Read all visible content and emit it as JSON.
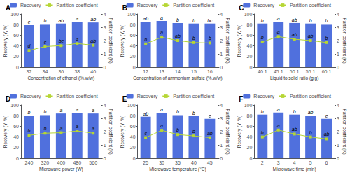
{
  "chart_data": [
    {
      "type": "bar",
      "title": "A",
      "x_label": "Concentration of ethanol (%,w/w)",
      "y_label": "Recovery (Y, %)",
      "y2_label": "Partition coefficient (K)",
      "categories": [
        "32",
        "34",
        "36",
        "38",
        "40"
      ],
      "series": [
        {
          "name": "Recovery",
          "type": "bar",
          "values": [
            79,
            81,
            82,
            85,
            84
          ],
          "annotations": [
            "c",
            "b",
            "ab",
            "a",
            "ab"
          ]
        },
        {
          "name": "Partition coefficient",
          "type": "line",
          "axis": "y2",
          "marker": "square",
          "values": [
            1.25,
            1.55,
            1.62,
            1.78,
            1.65
          ],
          "annotations": [
            "d",
            "c",
            "bc",
            "a",
            "ab"
          ]
        }
      ],
      "ylim": [
        0,
        100
      ],
      "yticks": [
        0,
        20,
        40,
        60,
        80,
        100
      ],
      "y2lim": [
        0,
        4
      ],
      "y2ticks": [
        0,
        1,
        2,
        3,
        4
      ],
      "legend": "upper left",
      "grid": false
    },
    {
      "type": "bar",
      "title": "B",
      "x_label": "Concentration of ammonium sulfate (%,w/w)",
      "y_label": "Recovery (Y, %)",
      "y2_label": "Partition coefficient (K)",
      "categories": [
        "12",
        "13",
        "14",
        "15",
        "16"
      ],
      "series": [
        {
          "name": "Recovery",
          "type": "bar",
          "values": [
            85,
            87,
            83,
            82,
            82
          ],
          "annotations": [
            "ab",
            "a",
            "b",
            "b",
            "bc"
          ]
        },
        {
          "name": "Partition coefficient",
          "type": "line",
          "axis": "y2",
          "marker": "square",
          "values": [
            1.75,
            2.25,
            2.0,
            1.85,
            1.82
          ],
          "annotations": [
            "b",
            "a",
            "ab",
            "b",
            "b"
          ]
        }
      ],
      "ylim": [
        0,
        100
      ],
      "yticks": [
        0,
        20,
        40,
        60,
        80,
        100
      ],
      "y2lim": [
        0,
        4
      ],
      "y2ticks": [
        0,
        1,
        2,
        3,
        4
      ],
      "legend": "upper left",
      "grid": false
    },
    {
      "type": "bar",
      "title": "C",
      "x_label": "Liquid to solid ratio (g:g)",
      "y_label": "Recovery (Y, %)",
      "y2_label": "Partition coefficient (K)",
      "categories": [
        "40:1",
        "45:1",
        "50:1",
        "55:1",
        "60:1"
      ],
      "series": [
        {
          "name": "Recovery",
          "type": "bar",
          "values": [
            82,
            85,
            83,
            82,
            81
          ],
          "annotations": [
            "b",
            "a",
            "ab",
            "b",
            "b"
          ]
        },
        {
          "name": "Partition coefficient",
          "type": "line",
          "axis": "y2",
          "marker": "square",
          "values": [
            1.9,
            2.3,
            2.1,
            2.0,
            1.85
          ],
          "annotations": [
            "b",
            "a",
            "ab",
            "ab",
            "b"
          ]
        }
      ],
      "ylim": [
        0,
        100
      ],
      "yticks": [
        0,
        20,
        40,
        60,
        80,
        100
      ],
      "y2lim": [
        0,
        4
      ],
      "y2ticks": [
        0,
        1,
        2,
        3,
        4
      ],
      "legend": "upper left",
      "grid": false
    },
    {
      "type": "bar",
      "title": "D",
      "x_label": "Microwave power (W)",
      "y_label": "Recovery (Y, %)",
      "y2_label": "Partition coefficient (K)",
      "categories": [
        "240",
        "320",
        "400",
        "480",
        "560"
      ],
      "series": [
        {
          "name": "Recovery",
          "type": "bar",
          "values": [
            80,
            81,
            84,
            85,
            84
          ],
          "annotations": [
            "b",
            "b",
            "a",
            "a",
            "a"
          ]
        },
        {
          "name": "Partition coefficient",
          "type": "line",
          "axis": "y2",
          "marker": "square",
          "values": [
            1.72,
            1.88,
            1.92,
            2.05,
            1.88
          ],
          "annotations": [
            "b",
            "b",
            "a",
            "a",
            "a"
          ]
        }
      ],
      "ylim": [
        0,
        100
      ],
      "yticks": [
        0,
        20,
        40,
        60,
        80,
        100
      ],
      "y2lim": [
        0,
        4
      ],
      "y2ticks": [
        0,
        1,
        2,
        3,
        4
      ],
      "legend": "upper left",
      "grid": false
    },
    {
      "type": "bar",
      "title": "E",
      "x_label": "Microwave temperature (°C)",
      "y_label": "Recovery (Y, %)",
      "y2_label": "Partition coefficient (K)",
      "categories": [
        "25",
        "30",
        "35",
        "40",
        "45"
      ],
      "series": [
        {
          "name": "Recovery",
          "type": "bar",
          "values": [
            78,
            85,
            81,
            79,
            74
          ],
          "annotations": [
            "ab",
            "a",
            "b",
            "b",
            "c"
          ]
        },
        {
          "name": "Partition coefficient",
          "type": "line",
          "axis": "y2",
          "marker": "square",
          "values": [
            1.55,
            2.1,
            1.78,
            1.68,
            1.55
          ],
          "annotations": [
            "c",
            "a",
            "b",
            "b",
            "ab"
          ]
        }
      ],
      "ylim": [
        0,
        100
      ],
      "yticks": [
        0,
        20,
        40,
        60,
        80,
        100
      ],
      "y2lim": [
        0,
        4
      ],
      "y2ticks": [
        0,
        1,
        2,
        3,
        4
      ],
      "legend": "upper left",
      "grid": false
    },
    {
      "type": "bar",
      "title": "F",
      "x_label": "Microwave time (min)",
      "y_label": "Recovery (Y, %)",
      "y2_label": "Partition coefficient (K)",
      "categories": [
        "2",
        "3",
        "4",
        "5",
        "6"
      ],
      "series": [
        {
          "name": "Recovery",
          "type": "bar",
          "values": [
            82,
            86,
            82,
            80,
            74
          ],
          "annotations": [
            "b",
            "a",
            "b",
            "ab",
            "c"
          ]
        },
        {
          "name": "Partition coefficient",
          "type": "line",
          "axis": "y2",
          "marker": "square",
          "values": [
            1.6,
            2.12,
            1.82,
            1.6,
            1.45
          ],
          "annotations": [
            "b",
            "a",
            "ab",
            "b",
            "ab"
          ]
        }
      ],
      "ylim": [
        0,
        100
      ],
      "yticks": [
        0,
        20,
        40,
        60,
        80,
        100
      ],
      "y2lim": [
        0,
        4
      ],
      "y2ticks": [
        0,
        1,
        2,
        3,
        4
      ],
      "legend": "upper left",
      "grid": false
    }
  ]
}
